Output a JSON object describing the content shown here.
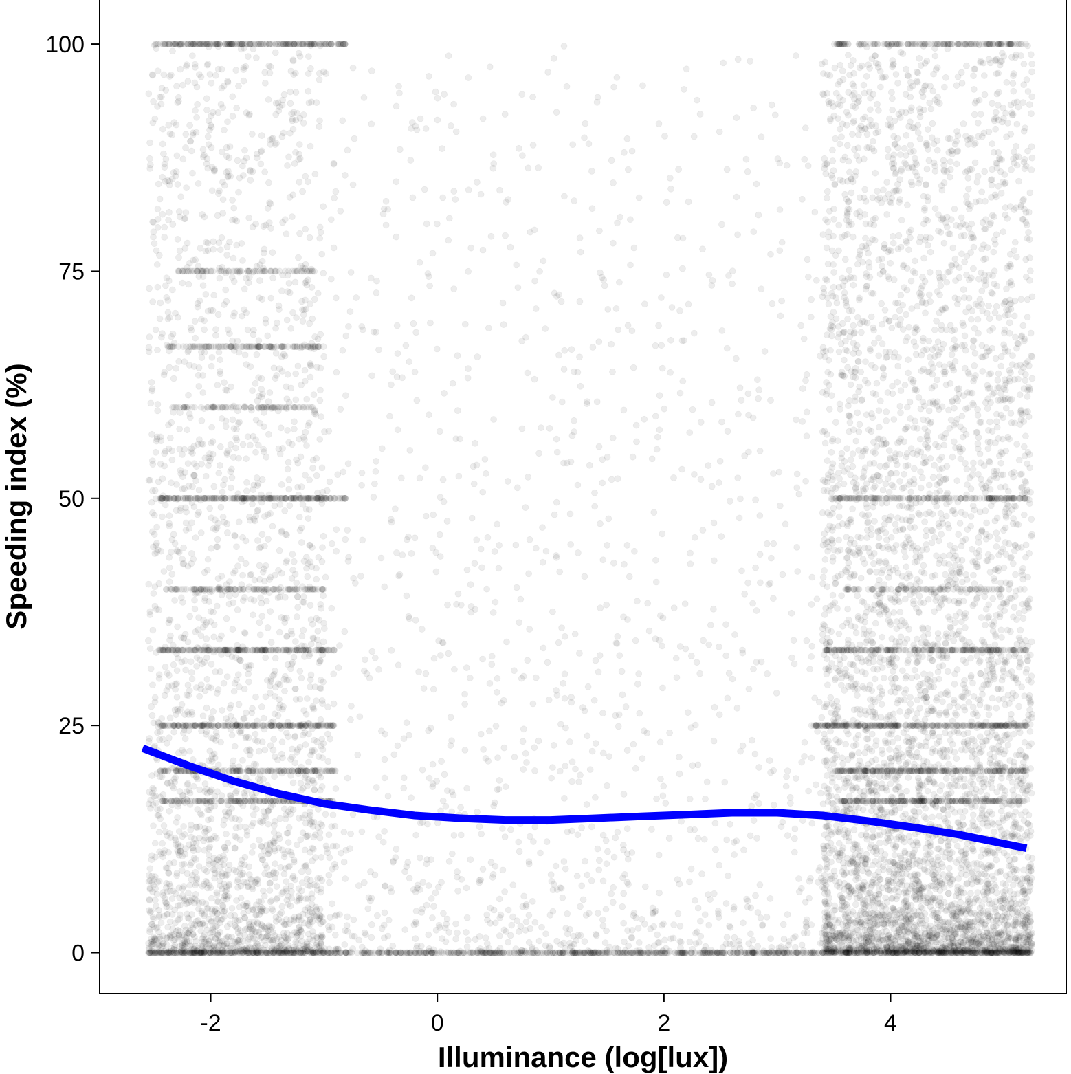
{
  "chart_data": {
    "type": "scatter",
    "xlabel": "Illuminance (log[lux])",
    "ylabel": "Speeding index (%)",
    "xlim": [
      -2.98,
      5.55
    ],
    "ylim": [
      -4.5,
      105
    ],
    "x_ticks": [
      -2,
      0,
      2,
      4
    ],
    "x_tick_labels": [
      "-2",
      "0",
      "2",
      "4"
    ],
    "y_ticks": [
      0,
      25,
      50,
      75,
      100
    ],
    "y_tick_labels": [
      "0",
      "25",
      "50",
      "75",
      "100"
    ],
    "grid": false,
    "point_color": "#000000",
    "point_opacity": 0.07,
    "trend": {
      "type": "line",
      "color": "#0000ff",
      "x": [
        -2.6,
        -2.2,
        -1.8,
        -1.4,
        -1.0,
        -0.6,
        -0.2,
        0.2,
        0.6,
        1.0,
        1.4,
        1.8,
        2.2,
        2.6,
        3.0,
        3.4,
        3.8,
        4.2,
        4.6,
        5.0,
        5.2
      ],
      "y": [
        22.5,
        20.6,
        18.9,
        17.5,
        16.4,
        15.7,
        15.1,
        14.8,
        14.6,
        14.6,
        14.8,
        15.0,
        15.2,
        15.4,
        15.4,
        15.1,
        14.5,
        13.8,
        13.0,
        12.0,
        11.5
      ]
    },
    "clusters": [
      {
        "xmin": -2.55,
        "xmax": -1.0,
        "ymin": 0,
        "ymax": 100,
        "n": 2600,
        "shape": "low-heavy"
      },
      {
        "xmin": -1.0,
        "xmax": 3.4,
        "ymin": 0,
        "ymax": 100,
        "n": 1400,
        "shape": "low-heavy"
      },
      {
        "xmin": 3.4,
        "xmax": 5.25,
        "ymin": 0,
        "ymax": 100,
        "n": 5200,
        "shape": "low-heavy"
      }
    ],
    "bands": [
      {
        "y": 0,
        "xmin": -2.55,
        "xmax": 5.25,
        "n": 900
      },
      {
        "y": 100,
        "xmin": -2.5,
        "xmax": -0.8,
        "n": 220
      },
      {
        "y": 100,
        "xmin": 3.5,
        "xmax": 5.2,
        "n": 160
      },
      {
        "y": 50,
        "xmin": -2.45,
        "xmax": -0.8,
        "n": 220
      },
      {
        "y": 50,
        "xmin": 3.5,
        "xmax": 5.2,
        "n": 160
      },
      {
        "y": 33.3,
        "xmin": -2.45,
        "xmax": -0.9,
        "n": 200
      },
      {
        "y": 33.3,
        "xmin": 3.4,
        "xmax": 5.2,
        "n": 200
      },
      {
        "y": 25,
        "xmin": -2.45,
        "xmax": -0.9,
        "n": 200
      },
      {
        "y": 25,
        "xmin": 3.3,
        "xmax": 5.2,
        "n": 260
      },
      {
        "y": 20,
        "xmin": -2.45,
        "xmax": -0.9,
        "n": 160
      },
      {
        "y": 20,
        "xmin": 3.5,
        "xmax": 5.2,
        "n": 200
      },
      {
        "y": 16.7,
        "xmin": -2.45,
        "xmax": -0.9,
        "n": 160
      },
      {
        "y": 16.7,
        "xmin": 3.5,
        "xmax": 5.2,
        "n": 200
      },
      {
        "y": 66.7,
        "xmin": -2.4,
        "xmax": -1.0,
        "n": 110
      },
      {
        "y": 75,
        "xmin": -2.3,
        "xmax": -1.1,
        "n": 80
      },
      {
        "y": 60,
        "xmin": -2.4,
        "xmax": -1.1,
        "n": 80
      },
      {
        "y": 40,
        "xmin": -2.4,
        "xmax": -1.0,
        "n": 110
      },
      {
        "y": 40,
        "xmin": 3.6,
        "xmax": 5.2,
        "n": 80
      }
    ]
  }
}
